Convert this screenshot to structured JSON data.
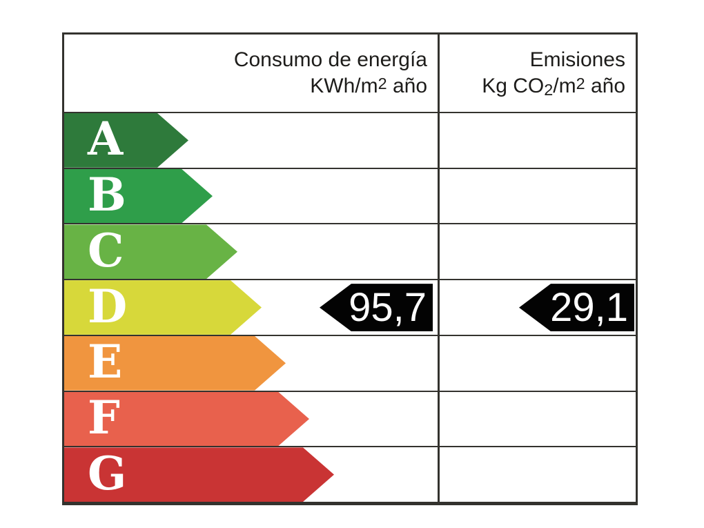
{
  "header": {
    "consumption": {
      "title": "Consumo de energía",
      "unit_prefix": "KWh/m",
      "unit_sup": "2",
      "unit_suffix": " año"
    },
    "emissions": {
      "title": "Emisiones",
      "unit_prefix": "Kg CO",
      "unit_sub": "2",
      "unit_mid": "/m",
      "unit_sup": "2",
      "unit_suffix": " año"
    }
  },
  "scale": {
    "rows": [
      {
        "letter": "A",
        "color": "#2e7a3b",
        "arrow_width": 180
      },
      {
        "letter": "B",
        "color": "#2f9e4a",
        "arrow_width": 215
      },
      {
        "letter": "C",
        "color": "#68b345",
        "arrow_width": 251
      },
      {
        "letter": "D",
        "color": "#d7d83a",
        "arrow_width": 286
      },
      {
        "letter": "E",
        "color": "#f0953f",
        "arrow_width": 321
      },
      {
        "letter": "F",
        "color": "#e8614d",
        "arrow_width": 355
      },
      {
        "letter": "G",
        "color": "#c93434",
        "arrow_width": 391
      }
    ]
  },
  "result": {
    "rating": "D",
    "consumption_value": "95,7",
    "emissions_value": "29,1",
    "indicator_color": "#030303",
    "indicator_text_color": "#ffffff"
  },
  "colors": {
    "border": "#33322e",
    "background": "#ffffff",
    "header_text": "#1d1c1a"
  },
  "chart_data": {
    "type": "table",
    "columns": [
      "Consumo de energía KWh/m2 año",
      "Emisiones Kg CO2/m2 año"
    ],
    "rating_scale": [
      "A",
      "B",
      "C",
      "D",
      "E",
      "F",
      "G"
    ],
    "scale_colors": [
      "#2e7a3b",
      "#2f9e4a",
      "#68b345",
      "#d7d83a",
      "#f0953f",
      "#e8614d",
      "#c93434"
    ],
    "selected_rating": "D",
    "values": {
      "consumo_kwh_m2_ano": 95.7,
      "emisiones_kg_co2_m2_ano": 29.1
    },
    "values_display": [
      "95,7",
      "29,1"
    ],
    "legend_position": "none",
    "grid": "table-borders"
  }
}
